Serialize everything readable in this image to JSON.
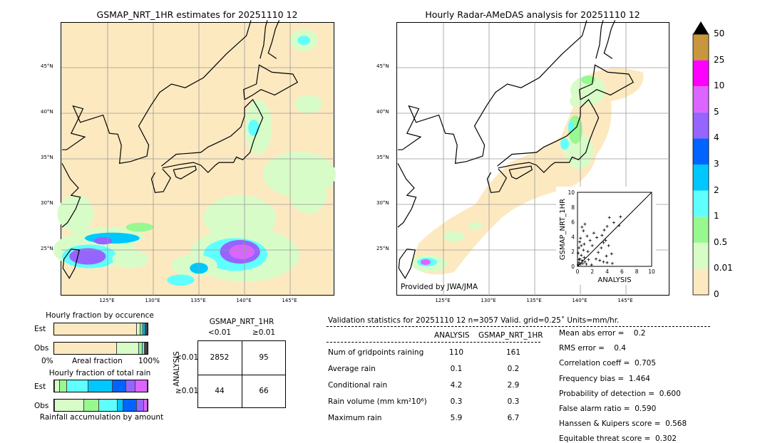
{
  "left_map": {
    "title": "GSMAP_NRT_1HR estimates for 20251110 12"
  },
  "right_map": {
    "title": "Hourly Radar-AMeDAS analysis for 20251110 12",
    "credit": "Provided by JWA/JMA"
  },
  "map_axes": {
    "lon_ticks": [
      "125°E",
      "130°E",
      "135°E",
      "140°E",
      "145°E"
    ],
    "lat_ticks": [
      "45°N",
      "40°N",
      "35°N",
      "30°N",
      "25°N"
    ]
  },
  "colorbar": {
    "labels": [
      "50",
      "25",
      "10",
      "5",
      "4",
      "3",
      "2",
      "1",
      "0.5",
      "0.01",
      "0"
    ],
    "colors": [
      "#fde9c0",
      "#d8fcc8",
      "#98f890",
      "#60ffff",
      "#00c8ff",
      "#0064ff",
      "#9664ff",
      "#dc64ff",
      "#ff00ff",
      "#c8963c"
    ],
    "over_color": "#000000"
  },
  "chart_data": [
    {
      "type": "scatter",
      "xlabel": "ANALYSIS",
      "ylabel": "GSMAP_NRT_1HR",
      "xlim": [
        0,
        10
      ],
      "ylim": [
        0,
        10
      ],
      "xticks": [
        "0",
        "2",
        "4",
        "6",
        "8",
        "10"
      ],
      "yticks": [
        "0",
        "2",
        "4",
        "6",
        "8",
        "10"
      ],
      "diagonal": true,
      "points": [
        [
          0.1,
          0.2
        ],
        [
          0.2,
          0.5
        ],
        [
          0.3,
          1.0
        ],
        [
          0.4,
          0.3
        ],
        [
          0.5,
          1.5
        ],
        [
          0.6,
          0.8
        ],
        [
          0.2,
          2.5
        ],
        [
          0.3,
          3.3
        ],
        [
          0.1,
          1.8
        ],
        [
          0.7,
          0.4
        ],
        [
          0.9,
          1.2
        ],
        [
          1.0,
          0.6
        ],
        [
          0.5,
          2.8
        ],
        [
          0.8,
          2.2
        ],
        [
          1.2,
          0.3
        ],
        [
          1.5,
          0.9
        ],
        [
          0.6,
          5.3
        ],
        [
          1.0,
          5.7
        ],
        [
          0.8,
          4.8
        ],
        [
          1.3,
          4.1
        ],
        [
          1.7,
          3.5
        ],
        [
          2.2,
          4.5
        ],
        [
          2.0,
          2.8
        ],
        [
          2.5,
          1.0
        ],
        [
          3.0,
          0.8
        ],
        [
          3.5,
          0.6
        ],
        [
          4.0,
          0.5
        ],
        [
          4.7,
          0.4
        ],
        [
          3.2,
          2.5
        ],
        [
          3.5,
          3.2
        ],
        [
          3.8,
          3.5
        ],
        [
          3.3,
          4.2
        ],
        [
          3.6,
          4.9
        ],
        [
          4.0,
          5.4
        ],
        [
          4.3,
          6.6
        ],
        [
          4.9,
          5.9
        ],
        [
          5.8,
          6.7
        ],
        [
          5.6,
          5.5
        ],
        [
          4.6,
          1.7
        ],
        [
          3.9,
          1.4
        ],
        [
          2.8,
          1.9
        ],
        [
          1.9,
          0.2
        ],
        [
          0.4,
          3.8
        ],
        [
          1.4,
          2.0
        ],
        [
          0.2,
          0.9
        ],
        [
          0.9,
          3.0
        ],
        [
          2.6,
          3.9
        ],
        [
          4.2,
          2.8
        ]
      ]
    },
    {
      "type": "bar",
      "title": "Hourly fraction by occurence",
      "categories": [
        "Est",
        "Obs"
      ],
      "xlabel": "Areal fraction",
      "xticks": [
        "0%",
        "100%"
      ],
      "series_fractions": {
        "Est": [
          0.89,
          0.04,
          0.02,
          0.02,
          0.01,
          0.01,
          0.005,
          0.005
        ],
        "Obs": [
          0.68,
          0.24,
          0.04,
          0.02,
          0.01,
          0.005,
          0.003,
          0.002
        ]
      }
    },
    {
      "type": "bar",
      "title": "Hourly fraction of total rain",
      "categories": [
        "Est",
        "Obs"
      ],
      "xlabel": "Rainfall accumulation by amount",
      "series_fractions": {
        "Est": [
          0.01,
          0.05,
          0.08,
          0.23,
          0.26,
          0.14,
          0.1,
          0.13
        ],
        "Obs": [
          0.0,
          0.31,
          0.16,
          0.2,
          0.06,
          0.15,
          0.075,
          0.035
        ]
      }
    },
    {
      "type": "table",
      "title": "GSMAP_NRT_1HR",
      "col_headers": [
        "<0.01",
        "≥0.01"
      ],
      "row_label": "ANALYSIS",
      "row_headers": [
        "<0.01",
        "≥0.01"
      ],
      "cells": [
        [
          "2852",
          "95"
        ],
        [
          "44",
          "66"
        ]
      ]
    }
  ],
  "stats": {
    "header": "Validation statistics for 20251110 12  n=3057 Valid. grid=0.25˚ Units=mm/hr.",
    "col_analysis": "ANALYSIS",
    "col_gsmap": "GSMAP_NRT_1HR",
    "rows": [
      {
        "label": "Num of gridpoints raining",
        "a": "110",
        "g": "161"
      },
      {
        "label": "Average rain",
        "a": "0.1",
        "g": "0.2"
      },
      {
        "label": "Conditional rain",
        "a": "4.2",
        "g": "2.9"
      },
      {
        "label": "Rain volume (mm km²10⁶)",
        "a": "0.3",
        "g": "0.3"
      },
      {
        "label": "Maximum rain",
        "a": "5.9",
        "g": "6.7"
      }
    ],
    "scores": [
      "Mean abs error =    0.2",
      "RMS error =    0.4",
      "Correlation coeff =  0.705",
      "Frequency bias =  1.464",
      "Probability of detection =  0.600",
      "False alarm ratio =  0.590",
      "Hanssen & Kuipers score =  0.568",
      "Equitable threat score =  0.302"
    ]
  }
}
